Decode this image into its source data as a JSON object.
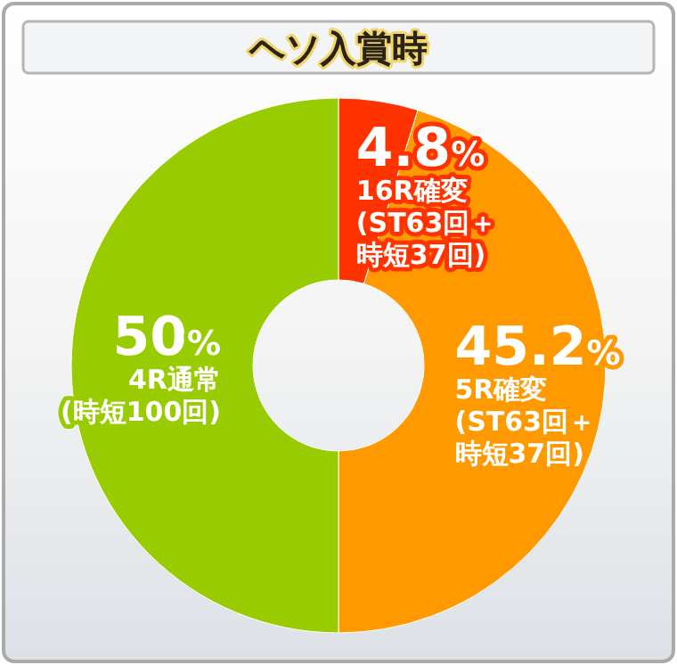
{
  "chart_data": {
    "type": "donut",
    "title": "ヘソ入賞時",
    "categories": [
      "16R確変(ST63回＋時短37回)",
      "5R確変(ST63回＋時短37回)",
      "4R通常(時短100回)"
    ],
    "values": [
      4.8,
      45.2,
      50
    ],
    "colors": [
      "#ff3300",
      "#ff9900",
      "#99cc00"
    ],
    "value_labels": [
      "4.8%",
      "45.2%",
      "50%"
    ]
  }
}
